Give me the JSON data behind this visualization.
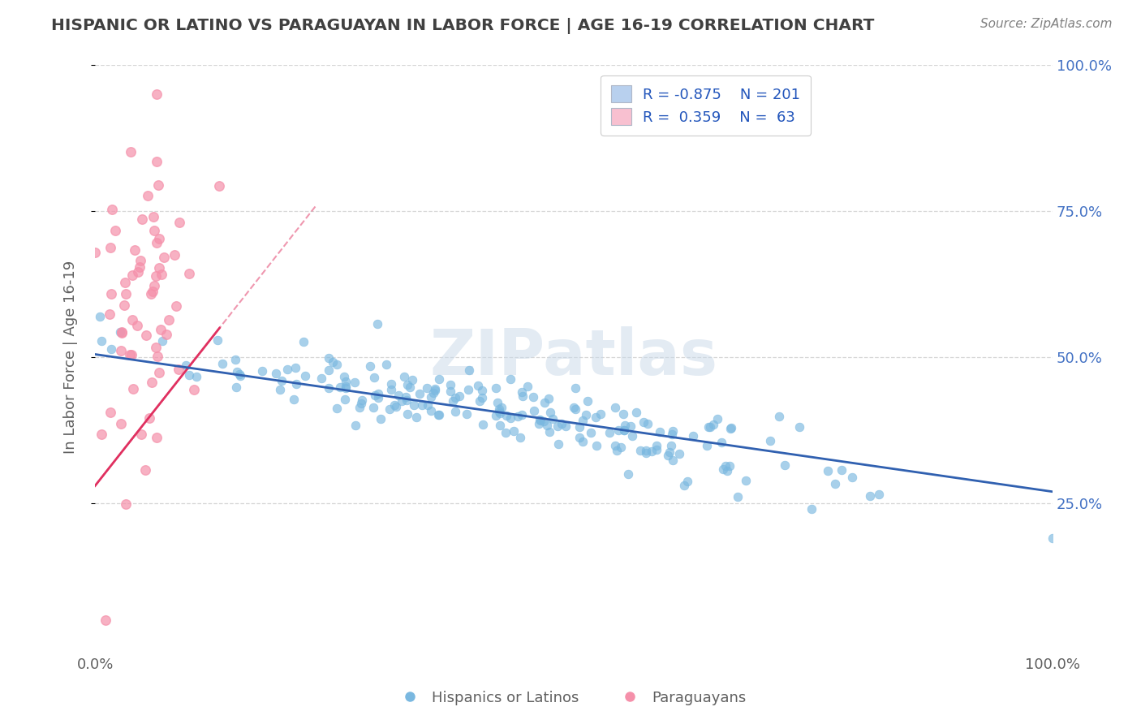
{
  "title": "HISPANIC OR LATINO VS PARAGUAYAN IN LABOR FORCE | AGE 16-19 CORRELATION CHART",
  "source": "Source: ZipAtlas.com",
  "xlabel": "",
  "ylabel": "In Labor Force | Age 16-19",
  "xlim": [
    0.0,
    1.0
  ],
  "ylim": [
    0.0,
    1.0
  ],
  "xtick_labels": [
    "0.0%",
    "100.0%"
  ],
  "ytick_positions": [
    0.25,
    0.5,
    0.75,
    1.0
  ],
  "ytick_labels": [
    "25.0%",
    "50.0%",
    "75.0%",
    "100.0%"
  ],
  "blue_R": -0.875,
  "blue_N": 201,
  "pink_R": 0.359,
  "pink_N": 63,
  "blue_scatter_color": "#7ab8e0",
  "pink_scatter_color": "#f590aa",
  "blue_line_color": "#3060b0",
  "pink_line_color": "#e03060",
  "background_color": "#ffffff",
  "grid_color": "#cccccc",
  "title_color": "#404040",
  "source_color": "#808080",
  "legend_blue_face": "#b8d0ee",
  "legend_pink_face": "#f8c0d0",
  "legend_label_color": "#2255bb",
  "watermark_color": "#c8d8e8"
}
